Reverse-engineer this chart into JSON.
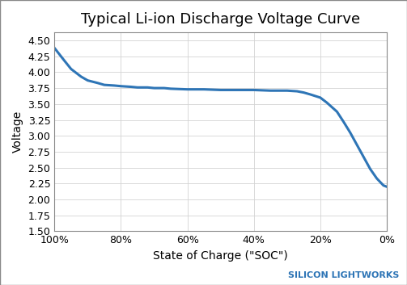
{
  "title": "Typical Li-ion Discharge Voltage Curve",
  "xlabel": "State of Charge (\"SOC\")",
  "ylabel": "Voltage",
  "watermark": "SILICON LIGHTWORKS",
  "watermark_color": "#2E75B6",
  "line_color": "#2E75B6",
  "background_color": "#FFFFFF",
  "border_color": "#AAAAAA",
  "ylim": [
    1.5,
    4.625
  ],
  "yticks": [
    1.5,
    1.75,
    2.0,
    2.25,
    2.5,
    2.75,
    3.0,
    3.25,
    3.5,
    3.75,
    4.0,
    4.25,
    4.5
  ],
  "ytick_labels": [
    "1.50",
    "1.75",
    "2.00",
    "2.25",
    "2.50",
    "2.75",
    "3.00",
    "3.25",
    "3.50",
    "3.75",
    "4.00",
    "4.25",
    "4.50"
  ],
  "xticks": [
    100,
    80,
    60,
    40,
    20,
    0
  ],
  "xtick_labels": [
    "100%",
    "80%",
    "60%",
    "40%",
    "20%",
    "0%"
  ],
  "soc": [
    100,
    97,
    95,
    92,
    90,
    87,
    85,
    82,
    80,
    77,
    75,
    72,
    70,
    67,
    65,
    60,
    55,
    50,
    45,
    40,
    35,
    30,
    27,
    25,
    23,
    20,
    18,
    15,
    13,
    11,
    9,
    7,
    5,
    3,
    1,
    0
  ],
  "voltage": [
    4.38,
    4.18,
    4.05,
    3.93,
    3.87,
    3.83,
    3.8,
    3.79,
    3.78,
    3.77,
    3.76,
    3.76,
    3.75,
    3.75,
    3.74,
    3.73,
    3.73,
    3.72,
    3.72,
    3.72,
    3.71,
    3.71,
    3.7,
    3.68,
    3.65,
    3.6,
    3.52,
    3.38,
    3.22,
    3.05,
    2.86,
    2.67,
    2.48,
    2.33,
    2.22,
    2.2
  ],
  "line_width": 2.2,
  "title_fontsize": 13,
  "axis_label_fontsize": 10,
  "tick_fontsize": 9,
  "watermark_fontsize": 8,
  "grid_color": "#D3D3D3",
  "grid_linewidth": 0.6
}
